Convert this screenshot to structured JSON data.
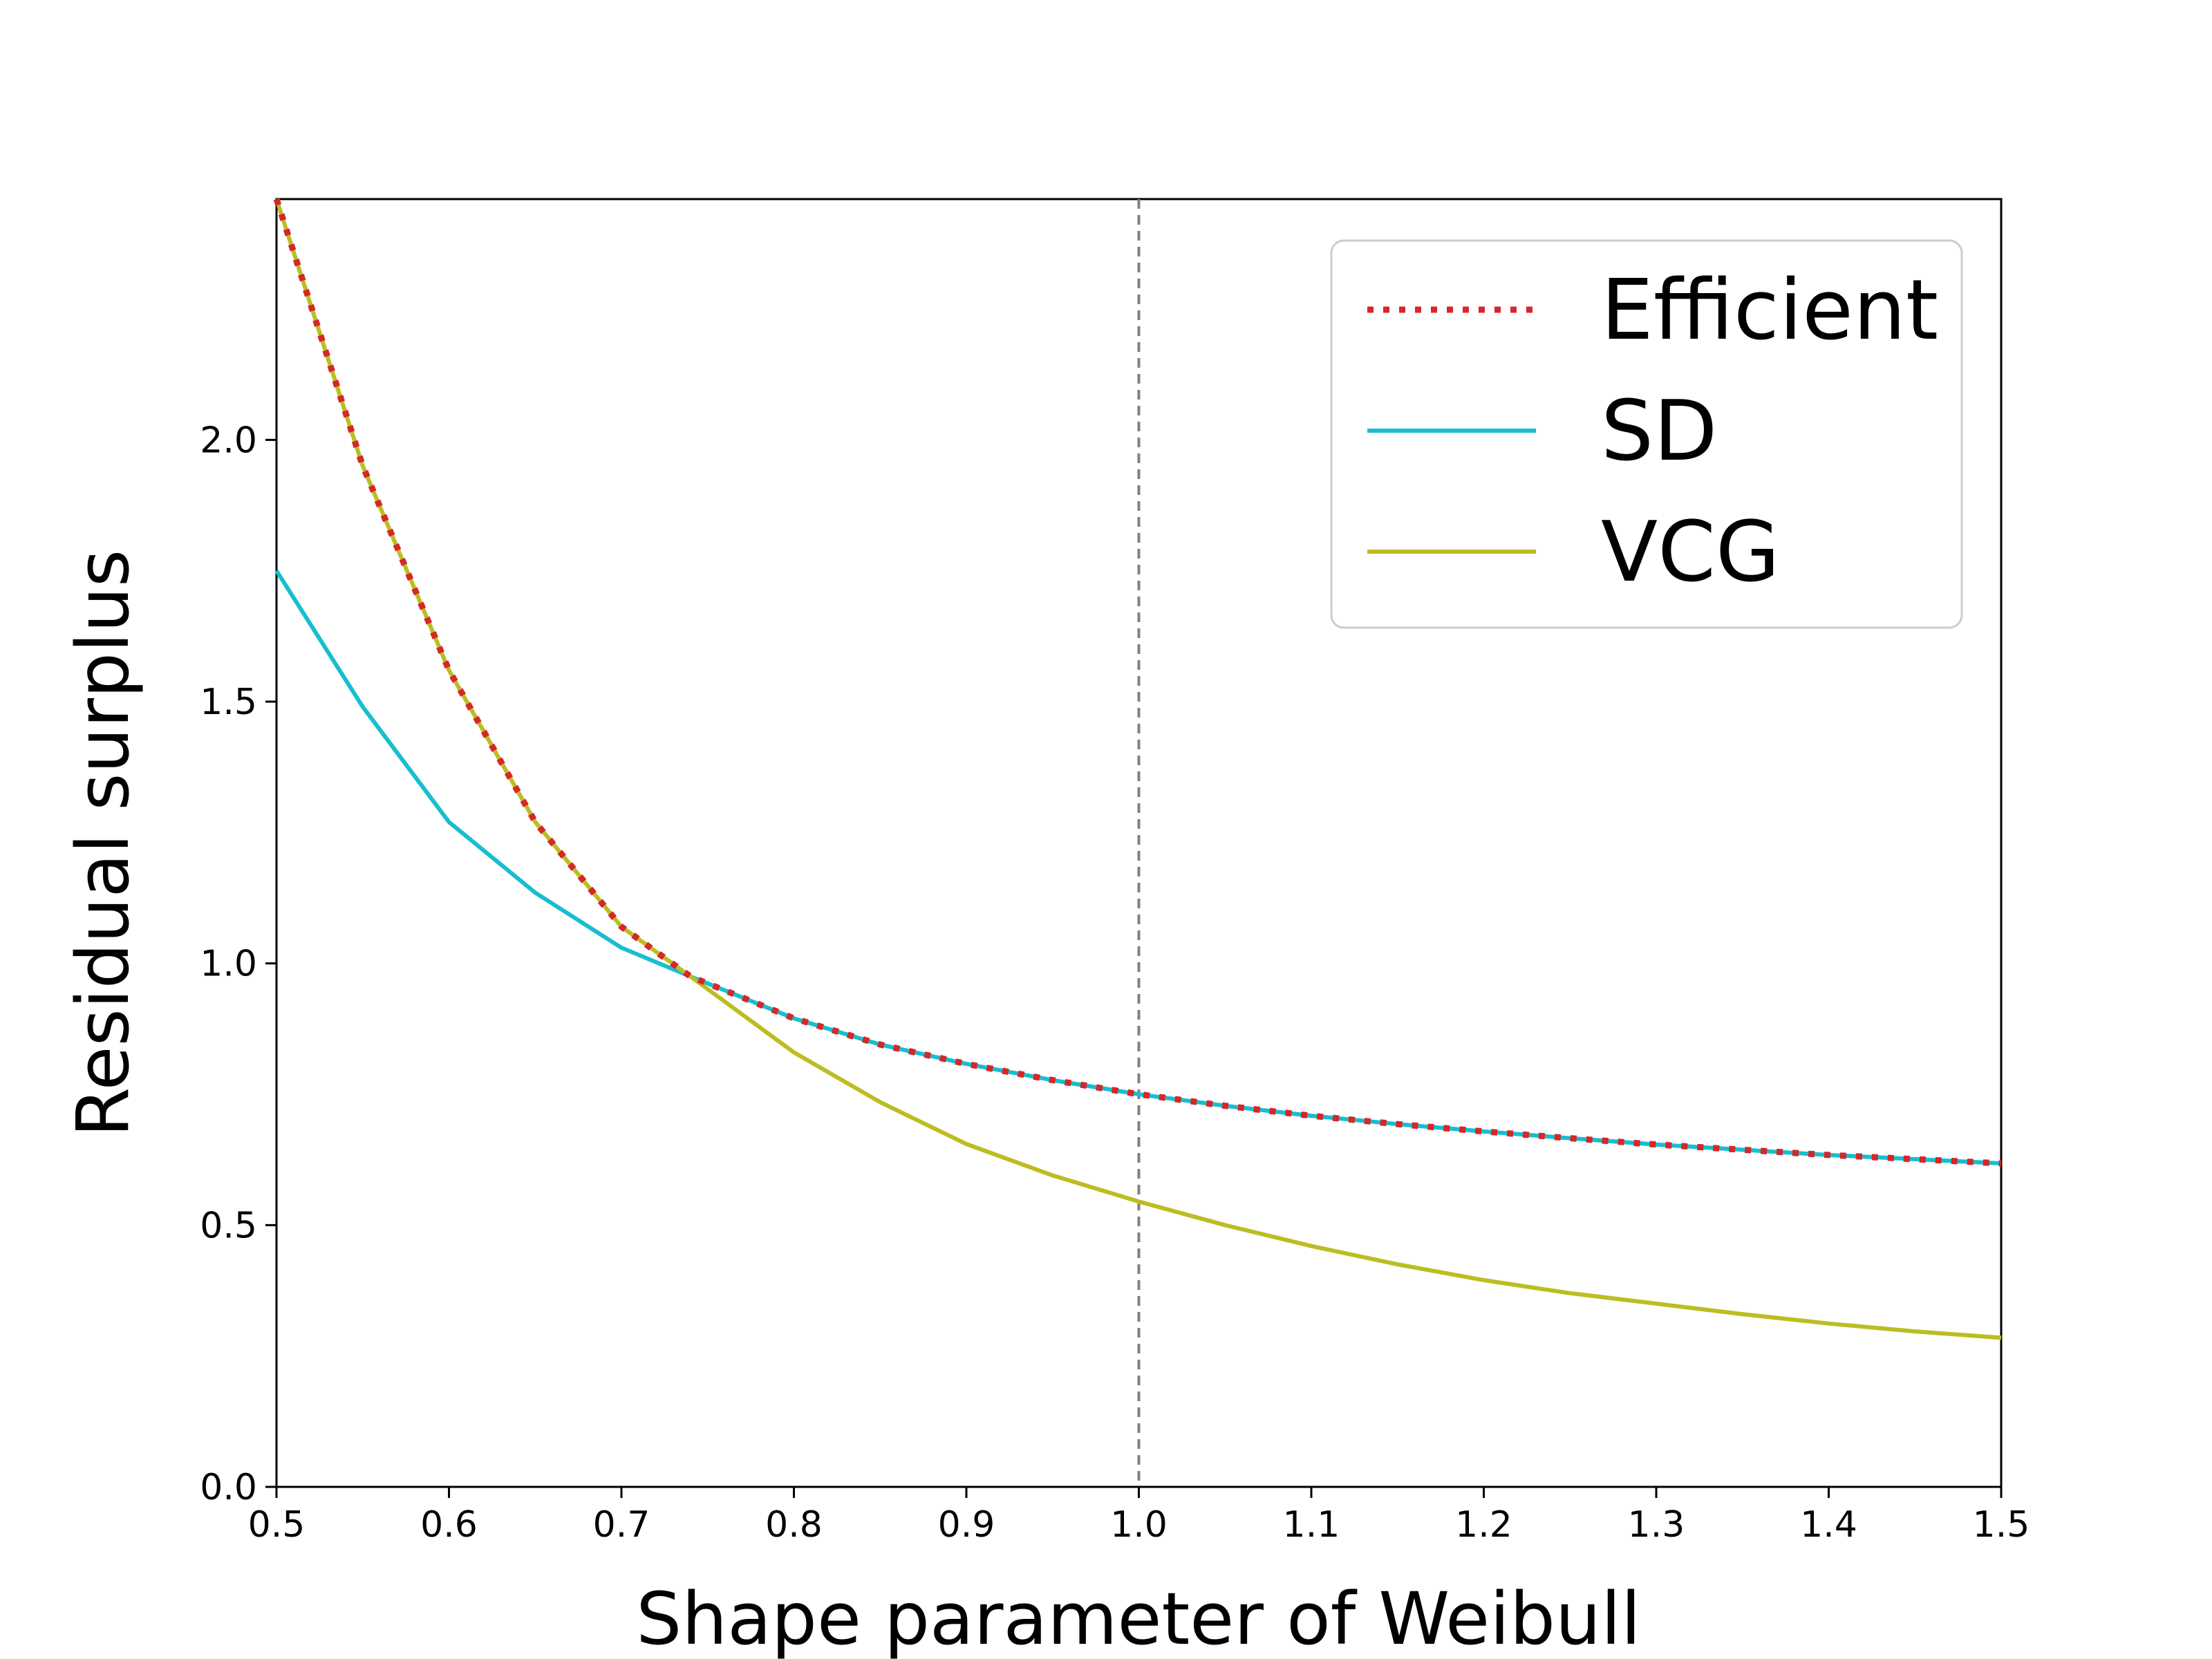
{
  "chart_data": {
    "type": "line",
    "title": "",
    "xlabel": "Shape parameter of Weibull",
    "ylabel": "Residual surplus",
    "xlim": [
      0.5,
      1.5
    ],
    "ylim": [
      0.0,
      2.46
    ],
    "xticks": [
      0.5,
      0.6,
      0.7,
      0.8,
      0.9,
      1.0,
      1.1,
      1.2,
      1.3,
      1.4,
      1.5
    ],
    "xtick_labels": [
      "0.5",
      "0.6",
      "0.7",
      "0.8",
      "0.9",
      "1.0",
      "1.1",
      "1.2",
      "1.3",
      "1.4",
      "1.5"
    ],
    "yticks": [
      0.0,
      0.5,
      1.0,
      1.5,
      2.0
    ],
    "ytick_labels": [
      "0.0",
      "0.5",
      "1.0",
      "1.5",
      "2.0"
    ],
    "grid": false,
    "legend_position": "top-right",
    "reference_line": {
      "axis": "x",
      "value": 1.0,
      "color": "#808080",
      "style": "dashed"
    },
    "x": [
      0.5,
      0.55,
      0.6,
      0.65,
      0.7,
      0.74,
      0.8,
      0.85,
      0.9,
      0.95,
      1.0,
      1.05,
      1.1,
      1.15,
      1.2,
      1.25,
      1.3,
      1.35,
      1.4,
      1.45,
      1.5
    ],
    "series": [
      {
        "name": "Efficient",
        "color": "#d62728",
        "style": "dotted",
        "values": [
          2.46,
          1.95,
          1.56,
          1.27,
          1.07,
          0.975,
          0.895,
          0.845,
          0.808,
          0.777,
          0.75,
          0.728,
          0.709,
          0.693,
          0.679,
          0.666,
          0.654,
          0.644,
          0.634,
          0.626,
          0.618
        ]
      },
      {
        "name": "SD",
        "color": "#17becf",
        "style": "solid",
        "values": [
          1.75,
          1.49,
          1.27,
          1.135,
          1.03,
          0.975,
          0.895,
          0.845,
          0.808,
          0.777,
          0.75,
          0.728,
          0.709,
          0.693,
          0.679,
          0.666,
          0.654,
          0.644,
          0.634,
          0.626,
          0.618
        ]
      },
      {
        "name": "VCG",
        "color": "#bcbd22",
        "style": "solid",
        "values": [
          2.46,
          1.95,
          1.56,
          1.27,
          1.07,
          0.975,
          0.83,
          0.735,
          0.655,
          0.595,
          0.545,
          0.5,
          0.46,
          0.425,
          0.395,
          0.37,
          0.35,
          0.33,
          0.312,
          0.297,
          0.285
        ]
      }
    ]
  }
}
